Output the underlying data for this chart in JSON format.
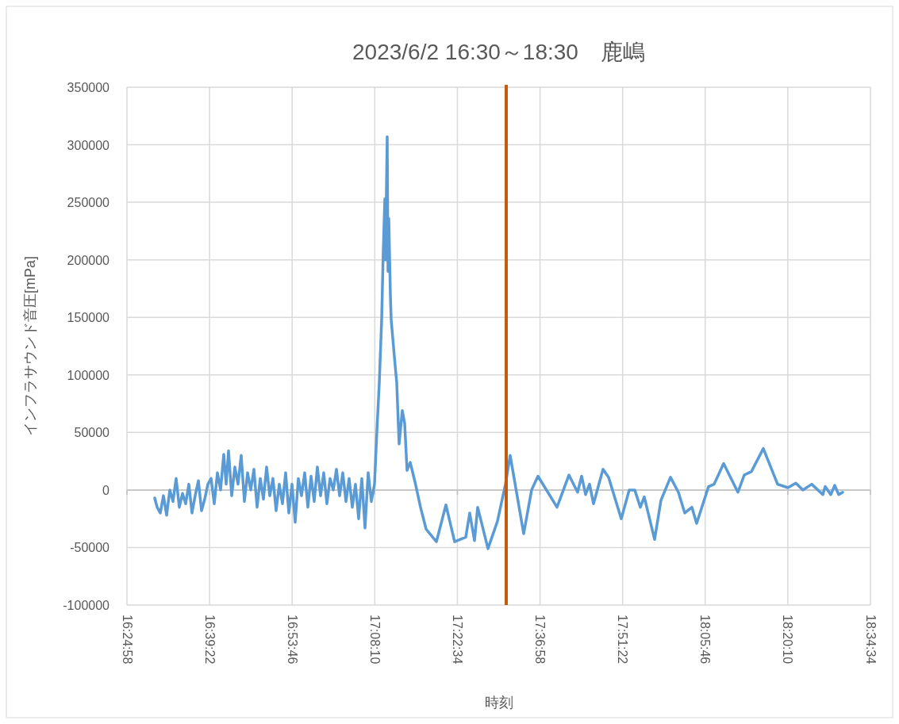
{
  "chart_data": {
    "type": "line",
    "title": "2023/6/2  16:30～18:30　鹿嶋",
    "xlabel": "時刻",
    "ylabel": "インフラサウンド音圧[mPa]",
    "xlim": [
      16.416111,
      18.576111
    ],
    "xticks": [
      {
        "value": 16.416111,
        "label": "16:24:58"
      },
      {
        "value": 16.656111,
        "label": "16:39:22"
      },
      {
        "value": 16.896111,
        "label": "16:53:46"
      },
      {
        "value": 17.136111,
        "label": "17:08:10"
      },
      {
        "value": 17.376111,
        "label": "17:22:34"
      },
      {
        "value": 17.616111,
        "label": "17:36:58"
      },
      {
        "value": 17.856111,
        "label": "17:51:22"
      },
      {
        "value": 18.096111,
        "label": "18:05:46"
      },
      {
        "value": 18.336111,
        "label": "18:20:10"
      },
      {
        "value": 18.576111,
        "label": "18:34:34"
      }
    ],
    "ylim": [
      -100000,
      350000
    ],
    "yticks": [
      -100000,
      -50000,
      0,
      50000,
      100000,
      150000,
      200000,
      250000,
      300000,
      350000
    ],
    "grid": true,
    "marker": "none",
    "line_style": "solid",
    "ref_lines": [
      {
        "axis": "x",
        "value": 17.518,
        "color": "#c55a11"
      }
    ],
    "series": [
      {
        "color": "#5b9bd5",
        "x": [
          16.4968,
          16.5037,
          16.5129,
          16.5221,
          16.5314,
          16.5406,
          16.5498,
          16.559,
          16.5682,
          16.5775,
          16.5867,
          16.5959,
          16.6051,
          16.6143,
          16.6236,
          16.6328,
          16.642,
          16.6512,
          16.6605,
          16.6697,
          16.6789,
          16.6881,
          16.6973,
          16.7043,
          16.7112,
          16.7204,
          16.7296,
          16.7388,
          16.748,
          16.7573,
          16.7665,
          16.7757,
          16.7849,
          16.7942,
          16.8034,
          16.8126,
          16.8218,
          16.831,
          16.8403,
          16.8495,
          16.8587,
          16.8679,
          16.8771,
          16.8864,
          16.8956,
          16.9048,
          16.914,
          16.9232,
          16.9325,
          16.9417,
          16.9509,
          16.9601,
          16.9693,
          16.9786,
          16.9878,
          16.997,
          17.0062,
          17.0155,
          17.0247,
          17.0339,
          17.0431,
          17.0523,
          17.0616,
          17.0708,
          17.08,
          17.0892,
          17.0984,
          17.1077,
          17.1169,
          17.1261,
          17.1353,
          17.1422,
          17.1492,
          17.1561,
          17.1607,
          17.1653,
          17.1676,
          17.1699,
          17.1722,
          17.1745,
          17.1768,
          17.1814,
          17.1837,
          17.193,
          17.1999,
          17.2068,
          17.216,
          17.2229,
          17.2298,
          17.2391,
          17.2529,
          17.269,
          17.2852,
          17.3151,
          17.3428,
          17.3681,
          17.4004,
          17.4119,
          17.4258,
          17.435,
          17.465,
          17.4926,
          17.5157,
          17.5295,
          17.5687,
          17.5917,
          17.6102,
          17.6655,
          17.7001,
          17.7254,
          17.737,
          17.7485,
          17.76,
          17.7716,
          17.7992,
          17.8154,
          17.8522,
          17.8753,
          17.8914,
          17.9076,
          17.9191,
          17.9491,
          17.9675,
          17.9952,
          18.0182,
          18.0367,
          18.0574,
          18.0712,
          18.1058,
          18.1219,
          18.1496,
          18.1911,
          18.2095,
          18.2303,
          18.2649,
          18.3064,
          18.3363,
          18.3594,
          18.3801,
          18.4055,
          18.4378,
          18.4447,
          18.4608,
          18.4723,
          18.4839,
          18.4954
        ],
        "values": [
          -7000,
          -15000,
          -20000,
          -5000,
          -22000,
          0,
          -10000,
          10000,
          -15000,
          -3000,
          -12000,
          5000,
          -20000,
          -5000,
          8000,
          -18000,
          -8000,
          5000,
          10000,
          -12000,
          15000,
          0,
          31000,
          5000,
          34000,
          -5000,
          20000,
          5000,
          30000,
          -10000,
          15000,
          0,
          18000,
          -15000,
          10000,
          -8000,
          20000,
          -5000,
          10000,
          -18000,
          5000,
          -12000,
          15000,
          -20000,
          5000,
          -28000,
          10000,
          -5000,
          15000,
          -15000,
          12000,
          -10000,
          20000,
          -5000,
          15000,
          -12000,
          10000,
          0,
          18000,
          -5000,
          15000,
          -10000,
          10000,
          -15000,
          5000,
          -25000,
          10000,
          -33000,
          15000,
          -10000,
          5000,
          51000,
          93000,
          148000,
          207000,
          253000,
          200000,
          260000,
          307000,
          190000,
          236000,
          170000,
          148000,
          116000,
          93000,
          40000,
          69000,
          58000,
          17000,
          24000,
          7000,
          -15000,
          -34000,
          -45000,
          -13000,
          -45000,
          -41000,
          -20000,
          -44000,
          -15000,
          -51000,
          -27000,
          5000,
          30000,
          -38000,
          0,
          12000,
          -15000,
          13000,
          -2000,
          12000,
          -4000,
          5000,
          -12000,
          18000,
          11000,
          -25000,
          0,
          0,
          -15000,
          -6000,
          -43000,
          -9000,
          11000,
          -2000,
          -20000,
          -15000,
          -29000,
          3000,
          5000,
          23000,
          -2000,
          13000,
          16000,
          36000,
          5000,
          2000,
          6000,
          0,
          5000,
          -4000,
          3000,
          -4000,
          4000,
          -4000,
          -2000
        ]
      }
    ]
  }
}
